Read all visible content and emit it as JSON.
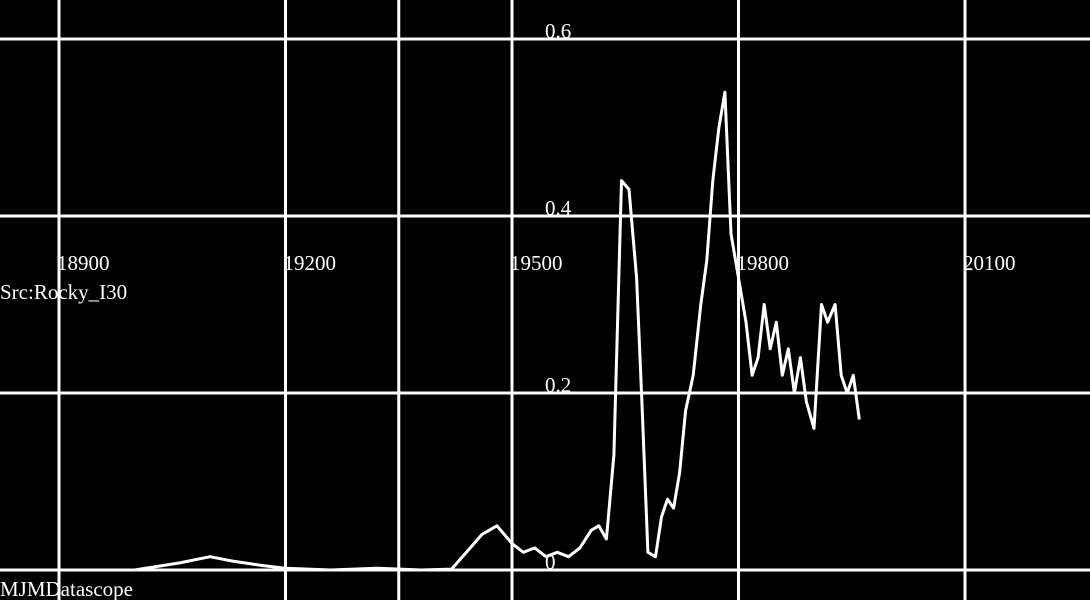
{
  "source_label": "Src:Rocky_I30",
  "app_name": "MJMDatascope",
  "colors": {
    "background": "#000000",
    "foreground": "#ffffff"
  },
  "chart_data": {
    "type": "line",
    "title": "",
    "xlabel": "",
    "ylabel": "",
    "xlim": [
      18840,
      19960
    ],
    "ylim": [
      0,
      0.6
    ],
    "grid": true,
    "x_ticks": [
      18900,
      19200,
      19500,
      19800,
      20100
    ],
    "x_tick_labels": [
      "18900",
      "19200",
      "19500",
      "19800",
      "20100"
    ],
    "y_ticks": [
      0,
      0.2,
      0.4,
      0.6
    ],
    "y_tick_labels": [
      "0",
      "0.2",
      "0.4",
      "0.6"
    ],
    "series": [
      {
        "points": [
          [
            19000,
            0.0
          ],
          [
            19060,
            0.008
          ],
          [
            19100,
            0.015
          ],
          [
            19130,
            0.01
          ],
          [
            19170,
            0.005
          ],
          [
            19200,
            0.002
          ],
          [
            19260,
            0.0
          ],
          [
            19320,
            0.002
          ],
          [
            19380,
            0.0
          ],
          [
            19420,
            0.001
          ],
          [
            19460,
            0.04
          ],
          [
            19480,
            0.05
          ],
          [
            19500,
            0.03
          ],
          [
            19515,
            0.02
          ],
          [
            19530,
            0.025
          ],
          [
            19545,
            0.015
          ],
          [
            19560,
            0.02
          ],
          [
            19575,
            0.015
          ],
          [
            19590,
            0.025
          ],
          [
            19605,
            0.045
          ],
          [
            19615,
            0.05
          ],
          [
            19625,
            0.035
          ],
          [
            19635,
            0.13
          ],
          [
            19645,
            0.44
          ],
          [
            19655,
            0.43
          ],
          [
            19665,
            0.33
          ],
          [
            19672,
            0.19
          ],
          [
            19680,
            0.02
          ],
          [
            19690,
            0.015
          ],
          [
            19698,
            0.06
          ],
          [
            19706,
            0.08
          ],
          [
            19714,
            0.07
          ],
          [
            19722,
            0.11
          ],
          [
            19730,
            0.18
          ],
          [
            19740,
            0.22
          ],
          [
            19750,
            0.3
          ],
          [
            19758,
            0.35
          ],
          [
            19766,
            0.44
          ],
          [
            19774,
            0.5
          ],
          [
            19782,
            0.54
          ],
          [
            19790,
            0.38
          ],
          [
            19800,
            0.33
          ],
          [
            19810,
            0.28
          ],
          [
            19818,
            0.22
          ],
          [
            19826,
            0.24
          ],
          [
            19834,
            0.3
          ],
          [
            19842,
            0.25
          ],
          [
            19850,
            0.28
          ],
          [
            19858,
            0.22
          ],
          [
            19866,
            0.25
          ],
          [
            19874,
            0.2
          ],
          [
            19882,
            0.24
          ],
          [
            19890,
            0.19
          ],
          [
            19900,
            0.16
          ],
          [
            19910,
            0.3
          ],
          [
            19918,
            0.28
          ],
          [
            19928,
            0.3
          ],
          [
            19936,
            0.22
          ],
          [
            19944,
            0.2
          ],
          [
            19952,
            0.22
          ],
          [
            19960,
            0.17
          ]
        ]
      }
    ]
  }
}
